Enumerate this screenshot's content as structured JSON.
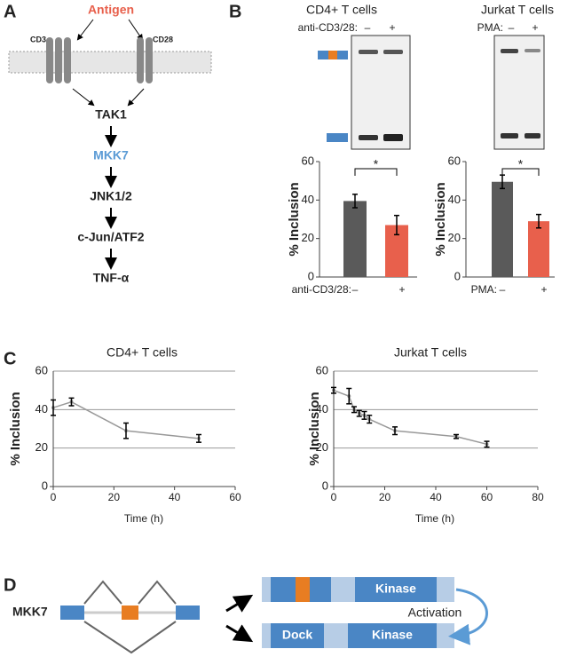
{
  "panels": {
    "a": "A",
    "b": "B",
    "c": "C",
    "d": "D"
  },
  "pathway": {
    "antigen": "Antigen",
    "cd3": "CD3",
    "cd28": "CD28",
    "steps": [
      "TAK1",
      "MKK7",
      "JNK1/2",
      "c-Jun/ATF2",
      "TNF-α"
    ]
  },
  "blots": [
    {
      "treatment": "anti-CD3/28:",
      "lanes": [
        "–",
        "+"
      ]
    },
    {
      "treatment": "PMA:",
      "lanes": [
        "–",
        "+"
      ]
    }
  ],
  "isoforms": {
    "gene": "MKK7",
    "long": [
      "Kinase"
    ],
    "short": [
      "Dock",
      "Kinase"
    ],
    "arrow": "Activation"
  },
  "chart_data": [
    {
      "type": "bar",
      "title": "CD4+ T cells",
      "ylabel": "% Inclusion",
      "xlabel": "anti-CD3/28:",
      "categories": [
        "–",
        "+"
      ],
      "values": [
        39.5,
        27
      ],
      "errors": [
        3.5,
        5
      ],
      "colors": [
        "#5a5a5a",
        "#e8604c"
      ],
      "ylim": [
        0,
        60
      ],
      "yticks": [
        0,
        20,
        40,
        60
      ],
      "significance": "*",
      "grid": false
    },
    {
      "type": "bar",
      "title": "Jurkat T cells",
      "ylabel": "% Inclusion",
      "xlabel": "PMA:",
      "categories": [
        "–",
        "+"
      ],
      "values": [
        49.5,
        29
      ],
      "errors": [
        3.5,
        3.5
      ],
      "colors": [
        "#5a5a5a",
        "#e8604c"
      ],
      "ylim": [
        0,
        60
      ],
      "yticks": [
        0,
        20,
        40,
        60
      ],
      "significance": "*",
      "grid": false
    },
    {
      "type": "line",
      "title": "CD4+ T cells",
      "ylabel": "% Inclusion",
      "xlabel": "Time (h)",
      "x": [
        0,
        6,
        24,
        48
      ],
      "values": [
        41,
        44,
        29,
        25
      ],
      "errors": [
        4,
        2,
        4,
        2
      ],
      "color": "#999999",
      "xlim": [
        0,
        60
      ],
      "xticks": [
        0,
        20,
        40,
        60
      ],
      "ylim": [
        0,
        60
      ],
      "yticks": [
        0,
        20,
        40,
        60
      ],
      "grid": true
    },
    {
      "type": "line",
      "title": "Jurkat T cells",
      "ylabel": "% Inclusion",
      "xlabel": "Time (h)",
      "x": [
        0,
        6,
        8,
        10,
        12,
        14,
        24,
        48,
        60
      ],
      "values": [
        50,
        47,
        40,
        38,
        37,
        35,
        29,
        26,
        22
      ],
      "errors": [
        1.5,
        4,
        1.5,
        1.5,
        2,
        2,
        2,
        1,
        1.5
      ],
      "color": "#999999",
      "xlim": [
        0,
        80
      ],
      "xticks": [
        0,
        20,
        40,
        60,
        80
      ],
      "ylim": [
        0,
        60
      ],
      "yticks": [
        0,
        20,
        40,
        60
      ],
      "grid": true
    }
  ]
}
